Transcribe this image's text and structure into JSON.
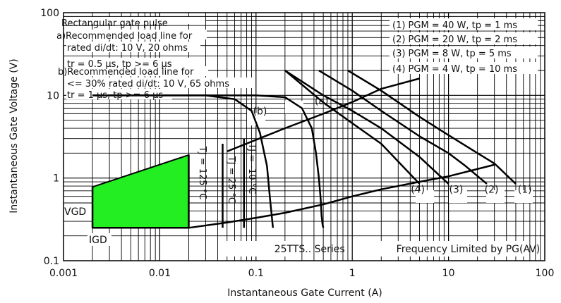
{
  "chart_data": {
    "type": "line",
    "log_x": true,
    "log_y": true,
    "xlim": [
      0.001,
      100
    ],
    "ylim": [
      0.1,
      100
    ],
    "xlabel": "Instantaneous Gate Current (A)",
    "ylabel": "Instantaneous Gate Voltage (V)",
    "x_ticks": [
      "0.001",
      "0.01",
      "0.1",
      "1",
      "10",
      "100"
    ],
    "y_ticks": [
      "0.1",
      "1",
      "10",
      "100"
    ],
    "grid": true,
    "notes": [
      "Rectangular gate pulse",
      "a)Recommended load line for",
      "rated di/dt: 10 V, 20 ohms",
      "tr = 0.5 µs, tp >= 6 µs",
      "b)Recommended load line for",
      "<= 30% rated di/dt: 10 V, 65 ohms",
      "tr = 1 µs, tp >= 6 µs"
    ],
    "power_legend": [
      "(1) PGM = 40 W, tp = 1 ms",
      "(2) PGM = 20 W, tp = 2 ms",
      "(3) PGM = 8 W, tp = 5 ms",
      "(4) PGM = 4 W, tp = 10 ms"
    ],
    "region": {
      "label_vgd": "VGD",
      "label_igd": "IGD",
      "vgd": 0.25,
      "igd": 0.002,
      "color": "#22ee22",
      "polygon": [
        [
          0.002,
          0.25
        ],
        [
          0.02,
          0.25
        ],
        [
          0.02,
          1.9
        ],
        [
          0.002,
          0.78
        ]
      ],
      "tj_labels": [
        "TJ = 125 °C",
        "TJ = 25 °C",
        "TJ = -10 °C"
      ],
      "tj_positions_x": [
        0.02,
        0.045,
        0.075
      ]
    },
    "series": [
      {
        "name": "(a)",
        "x": [
          0.002,
          0.1,
          0.2,
          0.3,
          0.38,
          0.42,
          0.45,
          0.47,
          0.48,
          0.49,
          0.5
        ],
        "y": [
          10,
          10,
          9.5,
          7,
          4.0,
          2.0,
          1.0,
          0.55,
          0.35,
          0.28,
          0.25
        ]
      },
      {
        "name": "(b)",
        "x": [
          0.002,
          0.03,
          0.06,
          0.09,
          0.11,
          0.13,
          0.14,
          0.15
        ],
        "y": [
          10,
          10,
          9,
          6.5,
          3.5,
          1.4,
          0.55,
          0.25
        ]
      },
      {
        "name": "(1)",
        "x": [
          0.9,
          2,
          5,
          10,
          20,
          30,
          50
        ],
        "y": [
          20,
          11.4,
          5.5,
          3.3,
          2.0,
          1.5,
          0.85
        ]
      },
      {
        "name": "(2)",
        "x": [
          0.45,
          1,
          2,
          5,
          10,
          15,
          25
        ],
        "y": [
          20,
          11.4,
          6.5,
          3.2,
          2.0,
          1.4,
          0.85
        ]
      },
      {
        "name": "(3)",
        "x": [
          0.2,
          0.5,
          1,
          2,
          5,
          10
        ],
        "y": [
          20,
          10,
          6.5,
          4.0,
          1.8,
          0.85
        ]
      },
      {
        "name": "(4)",
        "x": [
          0.2,
          0.5,
          1,
          2,
          5
        ],
        "y": [
          20,
          8.2,
          4.6,
          2.6,
          0.85
        ]
      },
      {
        "name": "Load line (a)",
        "x": [
          0.05,
          0.2,
          0.5,
          1,
          2,
          5
        ],
        "y": [
          2.1,
          4.0,
          6.0,
          8.3,
          12,
          16
        ]
      },
      {
        "name": "PG(AV) boundary",
        "x": [
          0.02,
          0.05,
          0.1,
          0.2,
          0.5,
          1,
          2,
          5,
          10,
          30
        ],
        "y": [
          0.25,
          0.29,
          0.33,
          0.38,
          0.48,
          0.6,
          0.73,
          0.9,
          1.05,
          1.45
        ]
      }
    ],
    "annotations": [
      {
        "text": "(a)",
        "x": 0.48,
        "y": 8.6
      },
      {
        "text": "(b)",
        "x": 0.11,
        "y": 6.5
      },
      {
        "text": "(4)",
        "x": 4.8,
        "y": 0.73
      },
      {
        "text": "(3)",
        "x": 12.0,
        "y": 0.73
      },
      {
        "text": "(2)",
        "x": 28.0,
        "y": 0.73
      },
      {
        "text": "(1)",
        "x": 62.0,
        "y": 0.73
      },
      {
        "text": "25TTS.. Series",
        "x": 0.36,
        "y": 0.14
      },
      {
        "text": "Frequency Limited by PG(AV)",
        "x": 16.0,
        "y": 0.14
      }
    ]
  }
}
